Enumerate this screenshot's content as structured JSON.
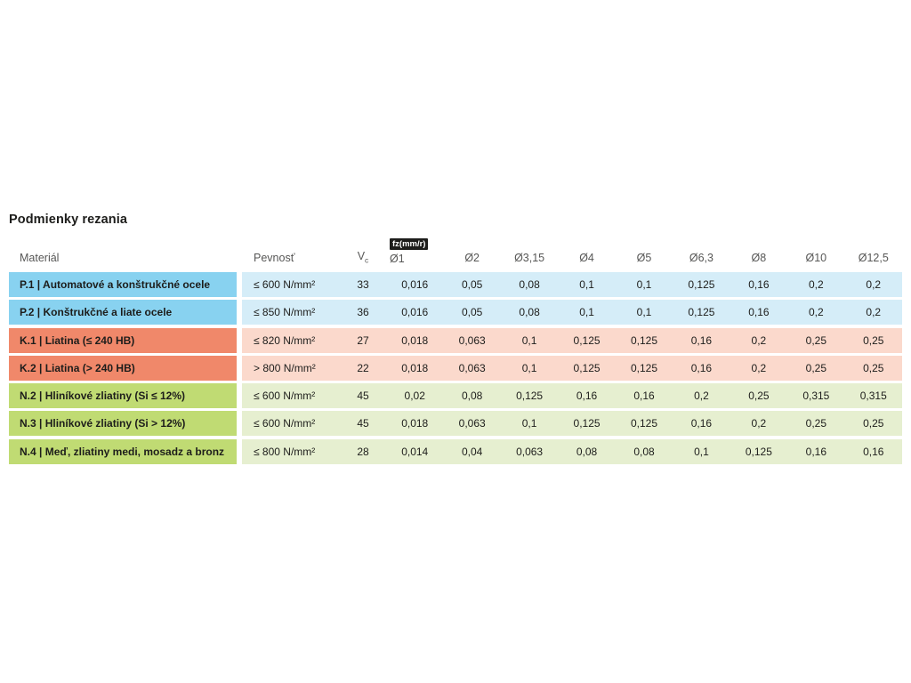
{
  "colors": {
    "group_p_label": "#88d2f0",
    "group_p_row": "#d5edf8",
    "group_k_label": "#f0886a",
    "group_k_row": "#fbd9cc",
    "group_n_label": "#c0db73",
    "group_n_row": "#e6efd0",
    "text": "#1d1d1b",
    "header_text": "#575756",
    "badge_bg": "#1d1d1b",
    "badge_text": "#ffffff"
  },
  "chart_data": {
    "type": "table",
    "title": "Podmienky rezania",
    "unit_badge": "fz(mm/r)",
    "columns": {
      "material": "Materiál",
      "pevnost": "Pevnosť",
      "vc": "V",
      "vc_sub": "c",
      "diameters": [
        "Ø1",
        "Ø2",
        "Ø3,15",
        "Ø4",
        "Ø5",
        "Ø6,3",
        "Ø8",
        "Ø10",
        "Ø12,5"
      ]
    },
    "rows": [
      {
        "group": "P",
        "material": "P.1 | Automatové a konštrukčné ocele",
        "pevnost": "≤ 600 N/mm²",
        "vc": "33",
        "values": [
          "0,016",
          "0,05",
          "0,08",
          "0,1",
          "0,1",
          "0,125",
          "0,16",
          "0,2",
          "0,2"
        ]
      },
      {
        "group": "P",
        "material": "P.2 | Konštrukčné a liate ocele",
        "pevnost": "≤ 850 N/mm²",
        "vc": "36",
        "values": [
          "0,016",
          "0,05",
          "0,08",
          "0,1",
          "0,1",
          "0,125",
          "0,16",
          "0,2",
          "0,2"
        ]
      },
      {
        "group": "K",
        "material": "K.1 | Liatina (≤ 240 HB)",
        "pevnost": "≤ 820 N/mm²",
        "vc": "27",
        "values": [
          "0,018",
          "0,063",
          "0,1",
          "0,125",
          "0,125",
          "0,16",
          "0,2",
          "0,25",
          "0,25"
        ]
      },
      {
        "group": "K",
        "material": "K.2 | Liatina (> 240 HB)",
        "pevnost": "> 800 N/mm²",
        "vc": "22",
        "values": [
          "0,018",
          "0,063",
          "0,1",
          "0,125",
          "0,125",
          "0,16",
          "0,2",
          "0,25",
          "0,25"
        ]
      },
      {
        "group": "N",
        "material": "N.2 | Hliníkové zliatiny (Si ≤ 12%)",
        "pevnost": "≤ 600 N/mm²",
        "vc": "45",
        "values": [
          "0,02",
          "0,08",
          "0,125",
          "0,16",
          "0,16",
          "0,2",
          "0,25",
          "0,315",
          "0,315"
        ]
      },
      {
        "group": "N",
        "material": "N.3 | Hliníkové zliatiny (Si > 12%)",
        "pevnost": "≤ 600 N/mm²",
        "vc": "45",
        "values": [
          "0,018",
          "0,063",
          "0,1",
          "0,125",
          "0,125",
          "0,16",
          "0,2",
          "0,25",
          "0,25"
        ]
      },
      {
        "group": "N",
        "material": "N.4 | Meď, zliatiny medi, mosadz a bronz",
        "pevnost": "≤ 800 N/mm²",
        "vc": "28",
        "values": [
          "0,014",
          "0,04",
          "0,063",
          "0,08",
          "0,08",
          "0,1",
          "0,125",
          "0,16",
          "0,16"
        ]
      }
    ]
  }
}
